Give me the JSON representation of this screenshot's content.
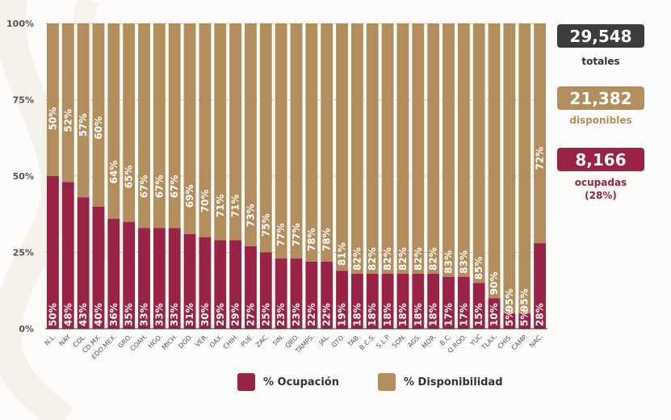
{
  "colors": {
    "ocupacion": "#9b2247",
    "disponibilidad": "#b38e5d",
    "totales_box": "#3c3c3c",
    "gap": "#ffffff",
    "axis_text": "#555555"
  },
  "summary": {
    "totales": {
      "value": "29,548",
      "caption": "totales"
    },
    "disponibles": {
      "value": "21,382",
      "caption": "disponibles"
    },
    "ocupadas": {
      "value": "8,166",
      "caption": "ocupadas",
      "caption2": "(28%)"
    }
  },
  "legend": {
    "ocupacion": "% Ocupación",
    "disponibilidad": "% Disponibilidad"
  },
  "chart_data": {
    "type": "bar",
    "stacked": true,
    "title": "",
    "xlabel": "",
    "ylabel": "",
    "ylim": [
      0,
      100
    ],
    "yticks": [
      "0%",
      "25%",
      "50%",
      "75%",
      "100%"
    ],
    "legend_position": "bottom",
    "categories": [
      "N.L.",
      "NAY.",
      "COL.",
      "CD.MX.",
      "EDO.MEX.",
      "GRO.",
      "COAH.",
      "HGO.",
      "MICH.",
      "DGO.",
      "VER.",
      "OAX.",
      "CHIH.",
      "PUE.",
      "ZAC.",
      "SIN.",
      "QRO.",
      "TAMPS.",
      "JAL.",
      "GTO.",
      "TAB.",
      "B.C.S.",
      "S.L.P.",
      "SON.",
      "AGS.",
      "MOR.",
      "B.C.",
      "Q.ROO.",
      "YUC",
      "TLAX.",
      "CHIS.",
      "CAMP.",
      "NAC."
    ],
    "series": [
      {
        "name": "% Ocupación",
        "values": [
          50,
          48,
          43,
          40,
          36,
          35,
          33,
          33,
          33,
          31,
          30,
          29,
          29,
          27,
          25,
          23,
          23,
          22,
          22,
          19,
          18,
          18,
          18,
          18,
          18,
          18,
          17,
          17,
          15,
          10,
          5,
          5,
          28
        ]
      },
      {
        "name": "% Disponibilidad",
        "values": [
          50,
          52,
          57,
          60,
          64,
          65,
          67,
          67,
          67,
          69,
          70,
          71,
          71,
          73,
          75,
          77,
          77,
          78,
          78,
          81,
          82,
          82,
          82,
          82,
          82,
          82,
          83,
          83,
          85,
          90,
          95,
          95,
          72
        ]
      }
    ]
  }
}
